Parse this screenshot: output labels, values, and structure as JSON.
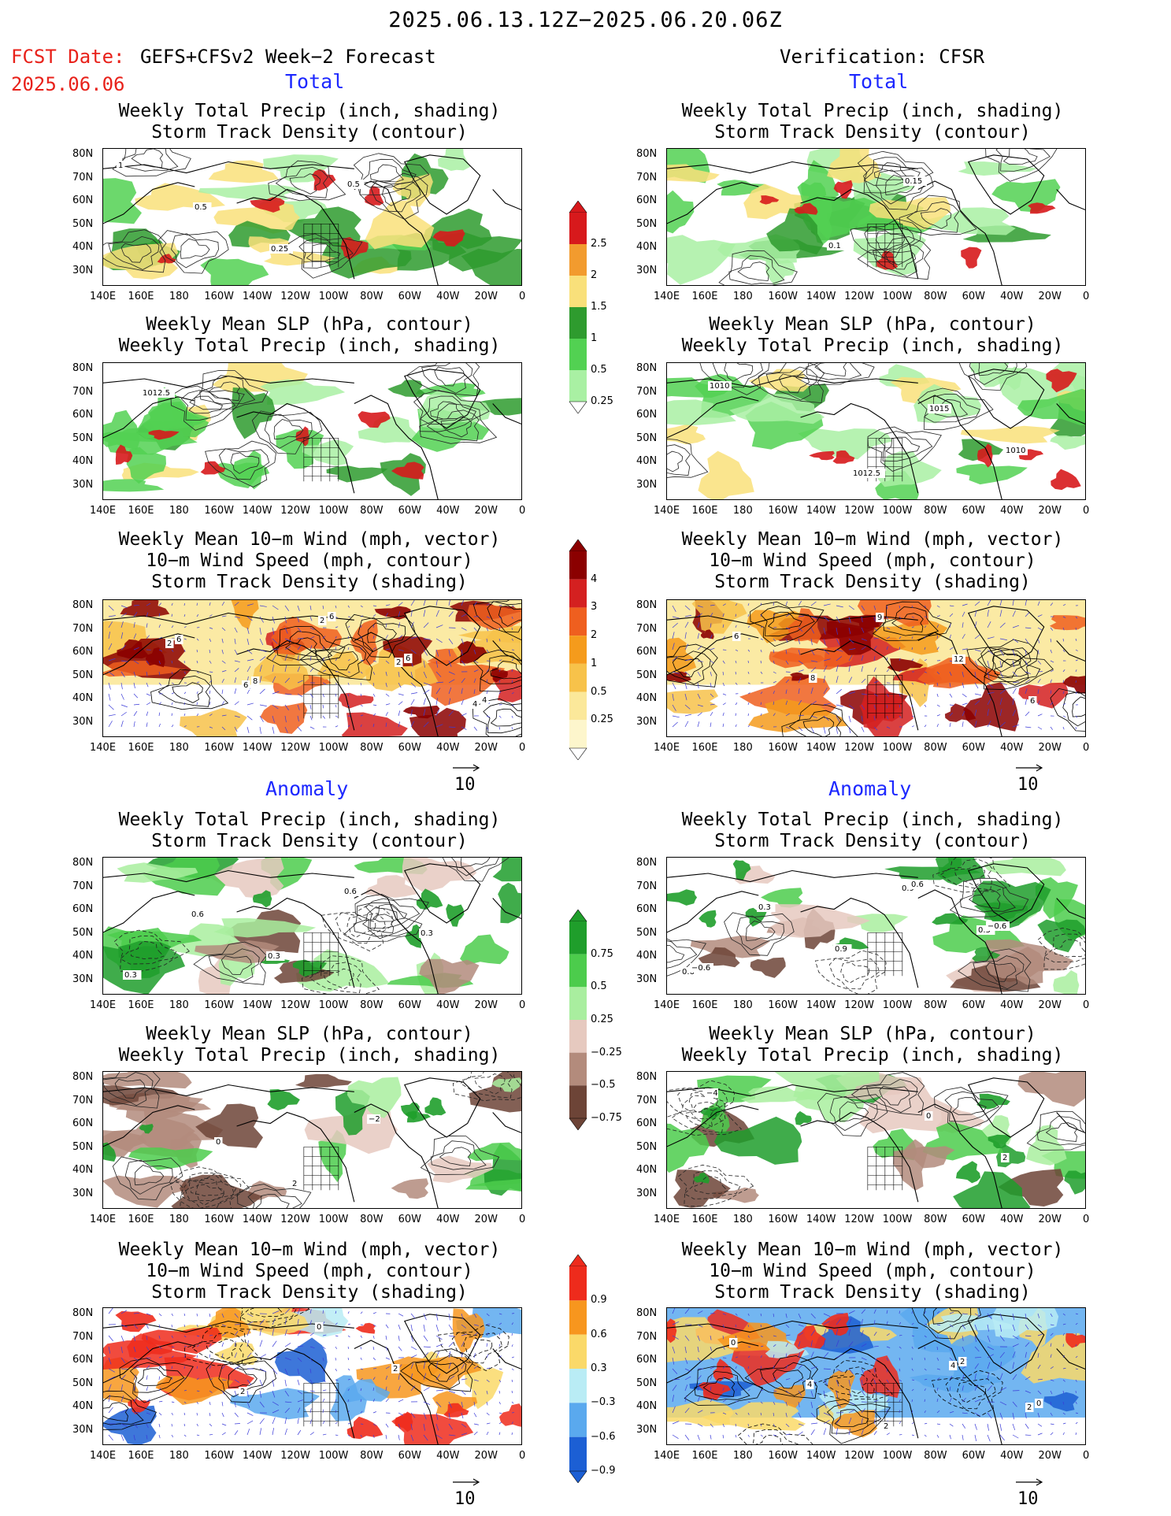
{
  "header": {
    "date_range": "2025.06.13.12Z−2025.06.20.06Z",
    "fcst_label": "FCST Date:",
    "fcst_name": "GEFS+CFSv2 Week−2 Forecast",
    "fcst_date": "2025.06.06",
    "verification": "Verification: CFSR"
  },
  "sections": {
    "total": "Total",
    "anomaly": "Anomaly"
  },
  "panel_titles": {
    "precip_storm": [
      "Weekly Total Precip (inch, shading)",
      "Storm Track Density (contour)"
    ],
    "slp_precip": [
      "Weekly Mean SLP (hPa, contour)",
      "Weekly Total Precip (inch, shading)"
    ],
    "wind": [
      "Weekly Mean 10−m Wind (mph, vector)",
      "10−m Wind Speed (mph, contour)",
      "Storm Track Density (shading)"
    ]
  },
  "axes": {
    "lat": [
      "80N",
      "70N",
      "60N",
      "50N",
      "40N",
      "30N"
    ],
    "lon": [
      "140E",
      "160E",
      "180",
      "160W",
      "140W",
      "120W",
      "100W",
      "80W",
      "60W",
      "40W",
      "20W",
      "0"
    ]
  },
  "vector_ref": "10",
  "colorbars": {
    "precip_total": {
      "labels": [
        "2.5",
        "2",
        "1.5",
        "1",
        "0.5",
        "0.25"
      ],
      "colors": [
        "#d7191c",
        "#f29b2e",
        "#f9e07a",
        "#2e9b2e",
        "#52d152",
        "#a9f0a3"
      ]
    },
    "storm_total": {
      "labels": [
        "4",
        "3",
        "2",
        "1",
        "0.5",
        "0.25"
      ],
      "colors": [
        "#8b0000",
        "#d42020",
        "#ef5f1f",
        "#f59b1c",
        "#f7c24a",
        "#fbe89a",
        "#fdf6cc"
      ]
    },
    "precip_anom": {
      "labels": [
        "0.75",
        "0.5",
        "0.25",
        "−0.25",
        "−0.5",
        "−0.75"
      ],
      "colors": [
        "#1f9e2b",
        "#4ccc4c",
        "#a9ee9f",
        "#e6c9bf",
        "#b38b7c",
        "#6d4437"
      ]
    },
    "storm_anom": {
      "labels": [
        "0.9",
        "0.6",
        "0.3",
        "−0.3",
        "−0.6",
        "−0.9"
      ],
      "colors": [
        "#ee2b1c",
        "#f7961e",
        "#fad969",
        "#b9ecf5",
        "#5aa9ee",
        "#1c5fd4"
      ]
    }
  },
  "contour_labels": {
    "p1": [
      "1",
      "0.5",
      "0.25",
      "0.5"
    ],
    "p2": [
      "1012.5"
    ],
    "p3": [
      "2",
      "6",
      "2",
      "2",
      "4",
      "6",
      "8",
      "6",
      "6",
      "4"
    ],
    "v1": [
      "0.1",
      "0.15"
    ],
    "v2": [
      "1012.5",
      "1015",
      "1010",
      "1010"
    ],
    "v3": [
      "9",
      "12",
      "6",
      "6",
      "8"
    ],
    "a1": [
      "0.6",
      "0.3",
      "0.6",
      "0.3",
      "0.3"
    ],
    "a2": [
      "0",
      "2",
      "−2"
    ],
    "a3": [
      "2",
      "0",
      "2"
    ],
    "va1": [
      "0.9",
      "0.3",
      "0.6",
      "0.3",
      "0.9",
      "0.6",
      "−0.6",
      "−0.6"
    ],
    "va2": [
      "0",
      "2",
      "−4"
    ],
    "va3": [
      "4",
      "2",
      "0",
      "4",
      "2",
      "2",
      "0"
    ]
  }
}
